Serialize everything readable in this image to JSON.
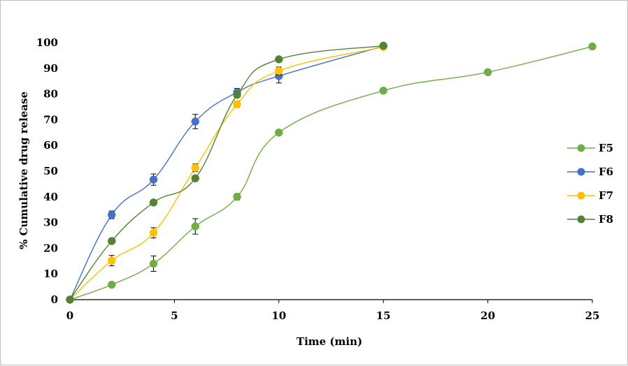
{
  "chart_data": {
    "type": "scatter",
    "title": "",
    "xlabel": "Time (min)",
    "ylabel": "% Cumulative drug release",
    "xlim": [
      0,
      25
    ],
    "ylim": [
      0,
      100
    ],
    "xticks": [
      0,
      5,
      10,
      15,
      20,
      25
    ],
    "yticks": [
      0,
      10,
      20,
      30,
      40,
      50,
      60,
      70,
      80,
      90,
      100
    ],
    "grid": false,
    "legend_position": "right",
    "series": [
      {
        "name": "F5",
        "color": "#70ad47",
        "x": [
          0,
          2,
          4,
          6,
          8,
          10,
          15,
          20,
          25
        ],
        "y": [
          0,
          5.8,
          14.0,
          28.5,
          40.0,
          65.0,
          81.3,
          88.5,
          98.5
        ],
        "err": [
          0,
          0.8,
          3.0,
          3.0,
          1.2,
          0.8,
          1.0,
          1.0,
          0.6
        ]
      },
      {
        "name": "F6",
        "color": "#4472c4",
        "x": [
          0,
          2,
          4,
          6,
          8,
          10,
          15
        ],
        "y": [
          0,
          33.0,
          46.7,
          69.3,
          80.7,
          87.0,
          98.6
        ],
        "err": [
          0,
          1.5,
          2.2,
          2.8,
          1.5,
          2.7,
          0.5
        ]
      },
      {
        "name": "F7",
        "color": "#ffc000",
        "x": [
          0,
          2,
          4,
          6,
          8,
          10,
          15
        ],
        "y": [
          0,
          15.2,
          26.0,
          51.3,
          76.0,
          89.0,
          98.3
        ],
        "err": [
          0,
          2.0,
          2.0,
          1.5,
          1.2,
          1.5,
          0.5
        ]
      },
      {
        "name": "F8",
        "color": "#548235",
        "x": [
          0,
          2,
          4,
          6,
          8,
          10,
          15
        ],
        "y": [
          0,
          22.8,
          37.8,
          47.2,
          79.7,
          93.5,
          98.8
        ],
        "err": [
          0,
          0.5,
          0.5,
          0.5,
          1.0,
          0.5,
          0.4
        ]
      }
    ]
  }
}
